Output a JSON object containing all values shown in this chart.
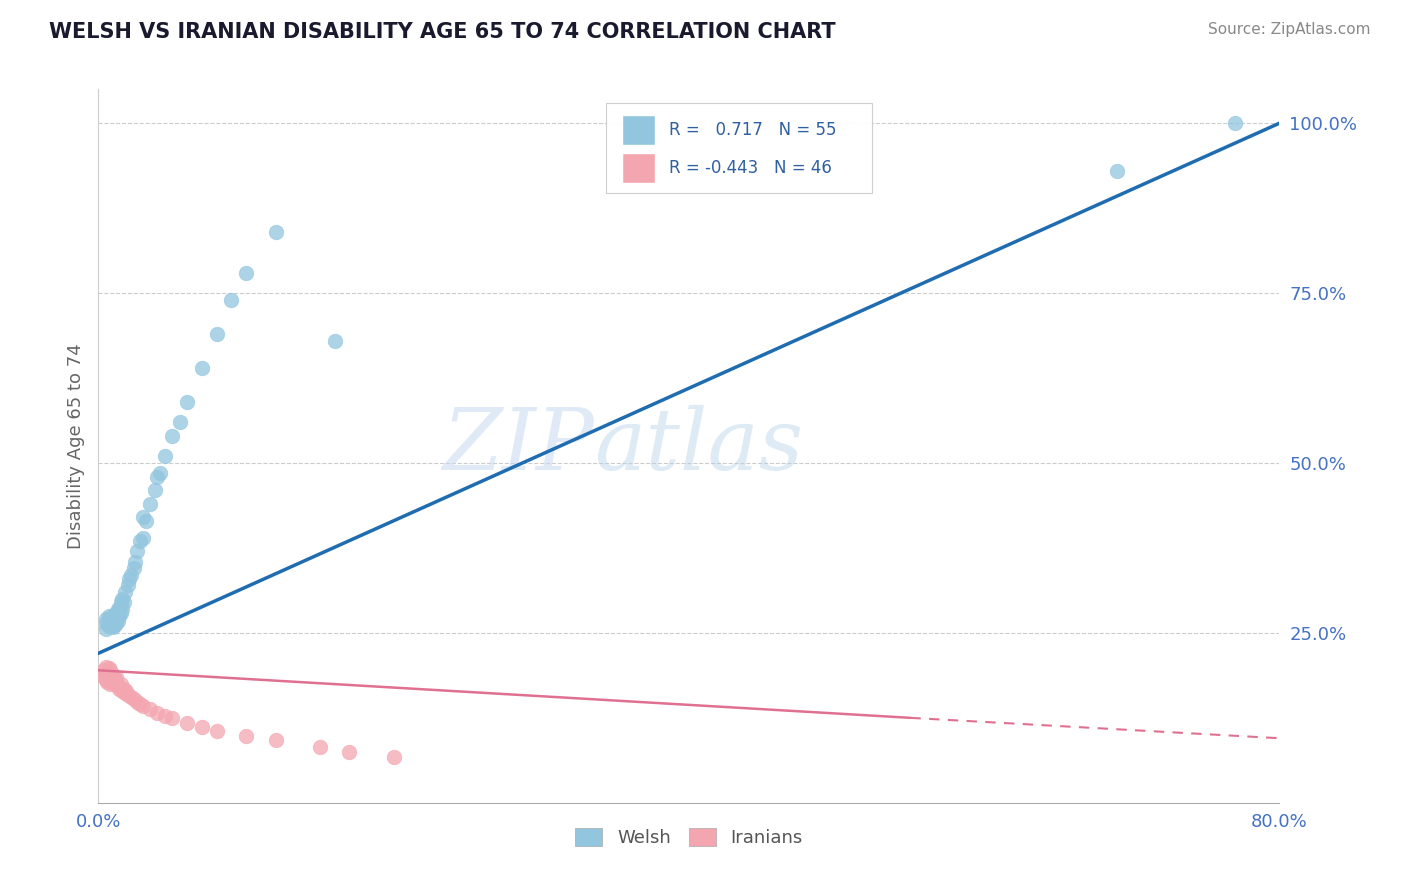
{
  "title": "WELSH VS IRANIAN DISABILITY AGE 65 TO 74 CORRELATION CHART",
  "source": "Source: ZipAtlas.com",
  "xmin": 0.0,
  "xmax": 0.8,
  "ymin": 0.0,
  "ymax": 1.05,
  "welsh_r": 0.717,
  "welsh_n": 55,
  "iranian_r": -0.443,
  "iranian_n": 46,
  "welsh_color": "#92c5de",
  "welsh_line_color": "#1f6cb0",
  "iranian_color": "#f4a6b0",
  "iranian_line_color": "#e07090",
  "watermark_zip": "ZIP",
  "watermark_atlas": "atlas",
  "welsh_scatter_x": [
    0.005,
    0.005,
    0.005,
    0.007,
    0.007,
    0.008,
    0.008,
    0.009,
    0.009,
    0.01,
    0.01,
    0.01,
    0.01,
    0.011,
    0.011,
    0.011,
    0.012,
    0.012,
    0.013,
    0.013,
    0.013,
    0.014,
    0.014,
    0.015,
    0.015,
    0.016,
    0.016,
    0.017,
    0.018,
    0.02,
    0.021,
    0.022,
    0.024,
    0.025,
    0.026,
    0.028,
    0.03,
    0.03,
    0.032,
    0.035,
    0.038,
    0.04,
    0.042,
    0.045,
    0.05,
    0.055,
    0.06,
    0.07,
    0.08,
    0.09,
    0.1,
    0.12,
    0.16,
    0.69,
    0.77
  ],
  "welsh_scatter_y": [
    0.255,
    0.265,
    0.27,
    0.26,
    0.275,
    0.265,
    0.27,
    0.26,
    0.268,
    0.258,
    0.262,
    0.27,
    0.275,
    0.262,
    0.268,
    0.278,
    0.265,
    0.272,
    0.268,
    0.275,
    0.285,
    0.275,
    0.285,
    0.28,
    0.295,
    0.285,
    0.3,
    0.295,
    0.31,
    0.32,
    0.33,
    0.335,
    0.345,
    0.355,
    0.37,
    0.385,
    0.39,
    0.42,
    0.415,
    0.44,
    0.46,
    0.48,
    0.485,
    0.51,
    0.54,
    0.56,
    0.59,
    0.64,
    0.69,
    0.74,
    0.78,
    0.84,
    0.68,
    0.93,
    1.0
  ],
  "iranian_scatter_x": [
    0.004,
    0.004,
    0.005,
    0.005,
    0.005,
    0.006,
    0.006,
    0.007,
    0.007,
    0.007,
    0.008,
    0.008,
    0.008,
    0.009,
    0.009,
    0.01,
    0.01,
    0.011,
    0.011,
    0.012,
    0.012,
    0.013,
    0.014,
    0.015,
    0.016,
    0.017,
    0.018,
    0.019,
    0.02,
    0.022,
    0.024,
    0.026,
    0.028,
    0.03,
    0.035,
    0.04,
    0.045,
    0.05,
    0.06,
    0.07,
    0.08,
    0.1,
    0.12,
    0.15,
    0.17,
    0.2
  ],
  "iranian_scatter_y": [
    0.185,
    0.195,
    0.18,
    0.19,
    0.2,
    0.178,
    0.188,
    0.182,
    0.192,
    0.198,
    0.175,
    0.185,
    0.195,
    0.18,
    0.19,
    0.178,
    0.188,
    0.182,
    0.175,
    0.178,
    0.185,
    0.172,
    0.168,
    0.175,
    0.165,
    0.168,
    0.162,
    0.165,
    0.158,
    0.155,
    0.152,
    0.148,
    0.145,
    0.142,
    0.138,
    0.132,
    0.128,
    0.125,
    0.118,
    0.112,
    0.105,
    0.098,
    0.092,
    0.082,
    0.075,
    0.068
  ],
  "welsh_line_x0": 0.0,
  "welsh_line_y0": 0.22,
  "welsh_line_x1": 0.8,
  "welsh_line_y1": 1.0,
  "iranian_line_x0": 0.0,
  "iranian_line_y0": 0.195,
  "iranian_line_x1": 0.55,
  "iranian_line_y1": 0.125,
  "iranian_line_dash_x0": 0.55,
  "iranian_line_dash_y0": 0.125,
  "iranian_line_dash_x1": 0.8,
  "iranian_line_dash_y1": 0.095
}
